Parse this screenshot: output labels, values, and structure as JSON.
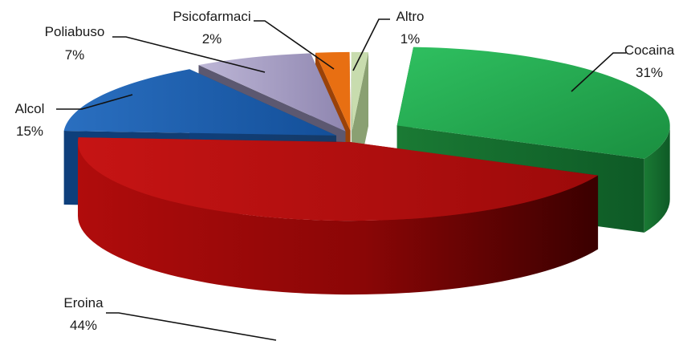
{
  "chart_data": {
    "type": "pie",
    "style": "3d-exploded",
    "slices": [
      {
        "name": "Cocaina",
        "value": 31,
        "label": "31%",
        "color": "#1e9a4a"
      },
      {
        "name": "Eroina",
        "value": 44,
        "label": "44%",
        "color": "#b50c0c"
      },
      {
        "name": "Alcol",
        "value": 15,
        "label": "15%",
        "color": "#1558a8"
      },
      {
        "name": "Poliabuso",
        "value": 7,
        "label": "7%",
        "color": "#a49bc0"
      },
      {
        "name": "Psicofarmaci",
        "value": 2,
        "label": "2%",
        "color": "#e06a10"
      },
      {
        "name": "Altro",
        "value": 1,
        "label": "1%",
        "color": "#c2d8a6"
      }
    ],
    "legend": "none"
  }
}
